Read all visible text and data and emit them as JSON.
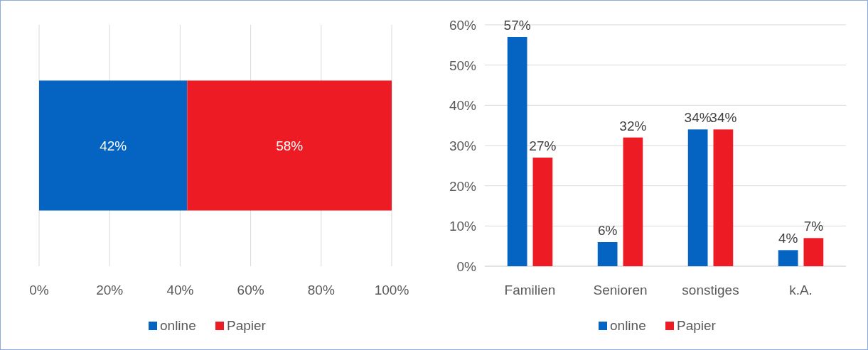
{
  "chart_data": [
    {
      "type": "bar",
      "orientation": "horizontal",
      "stacked": true,
      "categories": [
        null
      ],
      "xlim": [
        0,
        100
      ],
      "xticks": [
        {
          "value": 0,
          "label": "0%"
        },
        {
          "value": 20,
          "label": "20%"
        },
        {
          "value": 40,
          "label": "40%"
        },
        {
          "value": 60,
          "label": "60%"
        },
        {
          "value": 80,
          "label": "80%"
        },
        {
          "value": 100,
          "label": "100%"
        }
      ],
      "grid": "x",
      "legend": "bottom",
      "series": [
        {
          "name": "online",
          "color": "#0563c1",
          "values": [
            42
          ],
          "value_labels": [
            "42%"
          ]
        },
        {
          "name": "Papier",
          "color": "#ed1c24",
          "values": [
            58
          ],
          "value_labels": [
            "58%"
          ]
        }
      ]
    },
    {
      "type": "bar",
      "categories": [
        "Familien",
        "Senioren",
        "sonstiges",
        "k.A."
      ],
      "ylim": [
        0,
        60
      ],
      "yticks": [
        {
          "value": 0,
          "label": "0%"
        },
        {
          "value": 10,
          "label": "10%"
        },
        {
          "value": 20,
          "label": "20%"
        },
        {
          "value": 30,
          "label": "30%"
        },
        {
          "value": 40,
          "label": "40%"
        },
        {
          "value": 50,
          "label": "50%"
        },
        {
          "value": 60,
          "label": "60%"
        }
      ],
      "grid": "y",
      "legend": "bottom",
      "series": [
        {
          "name": "online",
          "color": "#0563c1",
          "values": [
            57,
            6,
            34,
            4
          ],
          "value_labels": [
            "57%",
            "6%",
            "34%",
            "4%"
          ]
        },
        {
          "name": "Papier",
          "color": "#ed1c24",
          "values": [
            27,
            32,
            34,
            7
          ],
          "value_labels": [
            "27%",
            "32%",
            "34%",
            "7%"
          ]
        }
      ]
    }
  ]
}
